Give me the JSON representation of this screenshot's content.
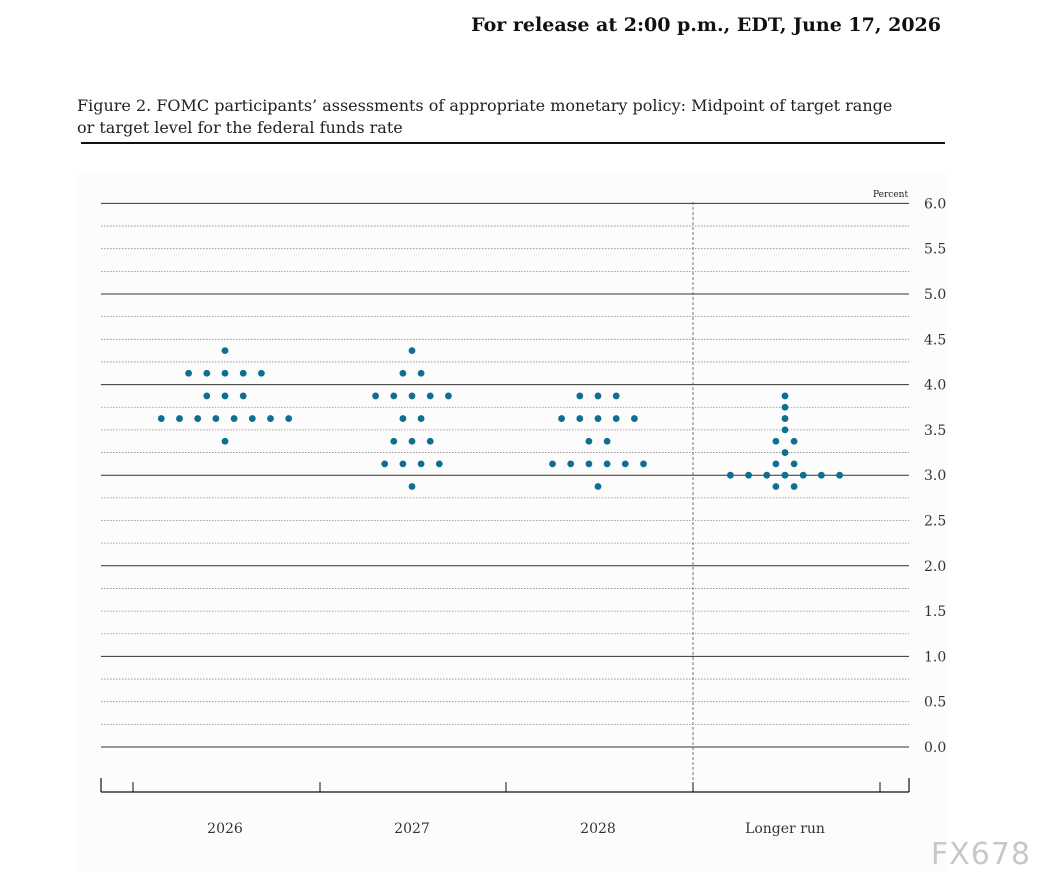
{
  "release_note": "For release at 2:00 p.m., EDT, June 17, 2026",
  "figure_caption_line1": "Figure 2. FOMC participants’ assessments of appropriate monetary policy: Midpoint of target range",
  "figure_caption_line2": "or target level for the federal funds rate",
  "watermark": "FX678",
  "chart_data": {
    "type": "scatter",
    "title": "",
    "ylabel": "Percent",
    "ylim": [
      0.0,
      6.0
    ],
    "ytick_step": 0.25,
    "ytick_labels": [
      "0.0",
      "0.5",
      "1.0",
      "1.5",
      "2.0",
      "2.5",
      "3.0",
      "3.5",
      "4.0",
      "4.5",
      "5.0",
      "5.5",
      "6.0"
    ],
    "categories": [
      "2026",
      "2027",
      "2028",
      "Longer run"
    ],
    "dot_color": "#0e6f92",
    "groups": [
      {
        "category": "2026",
        "points": [
          {
            "y": 4.375,
            "count": 1
          },
          {
            "y": 4.125,
            "count": 5
          },
          {
            "y": 3.875,
            "count": 3
          },
          {
            "y": 3.625,
            "count": 8
          },
          {
            "y": 3.375,
            "count": 1
          }
        ]
      },
      {
        "category": "2027",
        "points": [
          {
            "y": 4.375,
            "count": 1
          },
          {
            "y": 4.125,
            "count": 2
          },
          {
            "y": 3.875,
            "count": 5
          },
          {
            "y": 3.625,
            "count": 2
          },
          {
            "y": 3.375,
            "count": 3
          },
          {
            "y": 3.125,
            "count": 4
          },
          {
            "y": 2.875,
            "count": 1
          }
        ]
      },
      {
        "category": "2028",
        "points": [
          {
            "y": 3.875,
            "count": 3
          },
          {
            "y": 3.625,
            "count": 5
          },
          {
            "y": 3.375,
            "count": 2
          },
          {
            "y": 3.125,
            "count": 6
          },
          {
            "y": 2.875,
            "count": 1
          }
        ]
      },
      {
        "category": "Longer run",
        "points": [
          {
            "y": 3.875,
            "count": 1
          },
          {
            "y": 3.75,
            "count": 1
          },
          {
            "y": 3.625,
            "count": 1
          },
          {
            "y": 3.5,
            "count": 1
          },
          {
            "y": 3.375,
            "count": 2
          },
          {
            "y": 3.25,
            "count": 1
          },
          {
            "y": 3.125,
            "count": 2
          },
          {
            "y": 3.0,
            "count": 7
          },
          {
            "y": 2.875,
            "count": 2
          }
        ]
      }
    ]
  }
}
